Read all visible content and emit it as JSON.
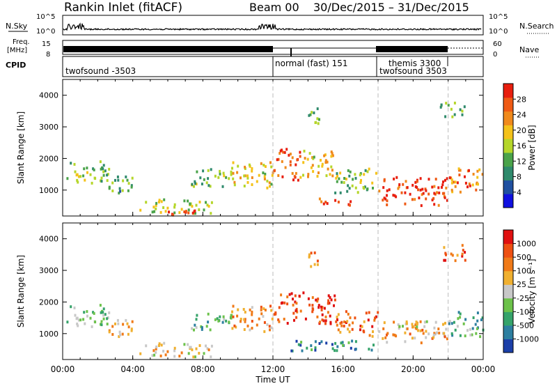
{
  "header": {
    "station": "Rankin Inlet (fitACF)",
    "beam": "Beam 00",
    "date_range": "30/Dec/2015 – 31/Dec/2015"
  },
  "strips": {
    "nsky_label": "N.Sky",
    "nsearch_label": "N.Search",
    "freq_label_line1": "Freq.",
    "freq_label_line2": "[MHz]",
    "nave_label": "Nave",
    "cpid_label": "CPID",
    "nsky_ticks": [
      "10^5",
      "10^0"
    ],
    "nsearch_ticks": [
      "10^5",
      "10^0"
    ],
    "freq_ticks": [
      "15",
      "8"
    ],
    "nave_ticks": [
      "60",
      "0"
    ]
  },
  "cpid_segments": [
    {
      "label": "twofsound -3503",
      "start": 0,
      "end": 12
    },
    {
      "label": "normal (fast) 151",
      "start": 12,
      "end": 18
    },
    {
      "label": "themis 3300",
      "start": 18,
      "end": 22
    },
    {
      "label": "twofsound 3503",
      "start": 18,
      "end": 22
    }
  ],
  "colors": {
    "power_scale": [
      "#1010e0",
      "#2050a0",
      "#2f8a6c",
      "#4aa34a",
      "#b5d62a",
      "#f4c21a",
      "#f08a1c",
      "#ef5a14",
      "#e81e0e"
    ],
    "velocity_scale": [
      "#1b3fa8",
      "#2d7fa0",
      "#35a36a",
      "#6cc24a",
      "#c8c8c8",
      "#f0b030",
      "#f07a18",
      "#ee5012",
      "#e01010"
    ]
  },
  "chart_data": [
    {
      "type": "heatmap",
      "title": "Power",
      "ylabel": "Slant Range [km]",
      "xlabel": "Time UT",
      "ylim": [
        180,
        4500
      ],
      "xlim": [
        0,
        24
      ],
      "x_ticks": [
        "00:00",
        "04:00",
        "08:00",
        "12:00",
        "16:00",
        "20:00",
        "00:00"
      ],
      "y_ticks": [
        "1000",
        "2000",
        "3000",
        "4000"
      ],
      "colorbar": {
        "label": "Power [dB]",
        "ticks": [
          "28",
          "24",
          "20",
          "16",
          "12",
          "8",
          "4"
        ],
        "range": [
          0,
          32
        ]
      },
      "regions": [
        {
          "t0": 0.2,
          "t1": 2.6,
          "r0": 1150,
          "r1": 1900,
          "level": 0.45
        },
        {
          "t0": 2.6,
          "t1": 4.2,
          "r0": 900,
          "r1": 1500,
          "level": 0.35
        },
        {
          "t0": 4.2,
          "t1": 8.5,
          "r0": 250,
          "r1": 700,
          "level": 0.5
        },
        {
          "t0": 5.8,
          "t1": 7.5,
          "r0": 200,
          "r1": 380,
          "level": 0.95
        },
        {
          "t0": 7.3,
          "t1": 9.6,
          "r0": 1100,
          "r1": 1700,
          "level": 0.4
        },
        {
          "t0": 9.6,
          "t1": 12.0,
          "r0": 1050,
          "r1": 1900,
          "level": 0.6
        },
        {
          "t0": 12.0,
          "t1": 13.5,
          "r0": 1300,
          "r1": 2300,
          "level": 0.85
        },
        {
          "t0": 13.5,
          "t1": 15.5,
          "r0": 1400,
          "r1": 2300,
          "level": 0.6
        },
        {
          "t0": 14.5,
          "t1": 16.5,
          "r0": 500,
          "r1": 750,
          "level": 0.9
        },
        {
          "t0": 15.5,
          "t1": 18.0,
          "r0": 900,
          "r1": 1700,
          "level": 0.45
        },
        {
          "t0": 18.0,
          "t1": 22.0,
          "r0": 500,
          "r1": 1400,
          "level": 0.92
        },
        {
          "t0": 22.0,
          "t1": 24.0,
          "r0": 900,
          "r1": 1700,
          "level": 0.75
        },
        {
          "t0": 14.0,
          "t1": 14.6,
          "r0": 3100,
          "r1": 3600,
          "level": 0.4
        },
        {
          "t0": 21.5,
          "t1": 23.0,
          "r0": 3300,
          "r1": 3800,
          "level": 0.4
        }
      ]
    },
    {
      "type": "heatmap",
      "title": "Velocity",
      "ylabel": "Slant Range [km]",
      "xlabel": "Time UT",
      "ylim": [
        180,
        4500
      ],
      "xlim": [
        0,
        24
      ],
      "x_ticks": [
        "00:00",
        "04:00",
        "08:00",
        "12:00",
        "16:00",
        "20:00",
        "00:00"
      ],
      "y_ticks": [
        "1000",
        "2000",
        "3000",
        "4000"
      ],
      "colorbar": {
        "label": "Velocity [m s⁻¹]",
        "ticks": [
          "1000",
          "500",
          "100",
          "25",
          "-25",
          "-100",
          "-500",
          "-1000"
        ],
        "range": [
          -1000,
          1000
        ]
      },
      "regions": [
        {
          "t0": 0.2,
          "t1": 2.6,
          "r0": 1150,
          "r1": 1900,
          "level": 0.4
        },
        {
          "t0": 2.6,
          "t1": 4.2,
          "r0": 900,
          "r1": 1500,
          "level": 0.6
        },
        {
          "t0": 4.2,
          "t1": 8.5,
          "r0": 250,
          "r1": 700,
          "level": 0.55
        },
        {
          "t0": 7.3,
          "t1": 9.6,
          "r0": 1100,
          "r1": 1700,
          "level": 0.3
        },
        {
          "t0": 9.6,
          "t1": 12.0,
          "r0": 1050,
          "r1": 1900,
          "level": 0.7
        },
        {
          "t0": 12.0,
          "t1": 15.5,
          "r0": 1300,
          "r1": 2300,
          "level": 0.85
        },
        {
          "t0": 13.0,
          "t1": 18.0,
          "r0": 450,
          "r1": 800,
          "level": 0.25
        },
        {
          "t0": 15.5,
          "t1": 18.0,
          "r0": 900,
          "r1": 1700,
          "level": 0.75
        },
        {
          "t0": 18.0,
          "t1": 22.0,
          "r0": 700,
          "r1": 1400,
          "level": 0.65
        },
        {
          "t0": 19.0,
          "t1": 21.0,
          "r0": 1100,
          "r1": 1400,
          "level": 0.5
        },
        {
          "t0": 22.0,
          "t1": 24.0,
          "r0": 900,
          "r1": 1700,
          "level": 0.3
        },
        {
          "t0": 14.0,
          "t1": 14.6,
          "r0": 3100,
          "r1": 3600,
          "level": 0.75
        },
        {
          "t0": 21.5,
          "t1": 23.0,
          "r0": 3300,
          "r1": 3800,
          "level": 0.8
        }
      ]
    }
  ]
}
